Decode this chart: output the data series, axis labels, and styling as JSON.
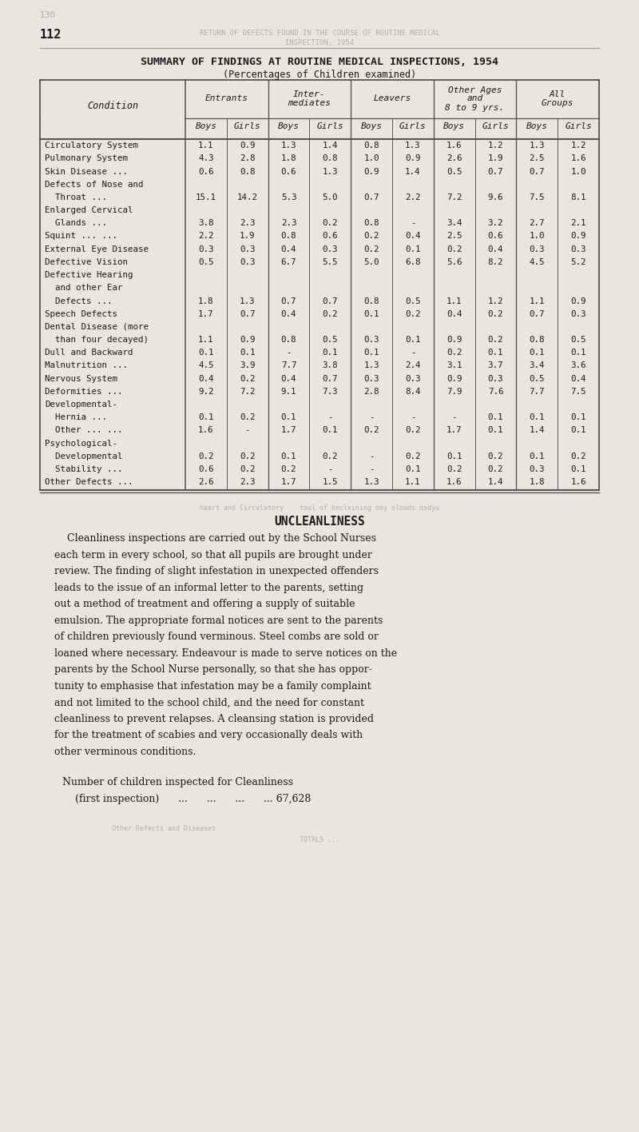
{
  "page_number_top": "130",
  "page_number": "112",
  "faded_header_line1": "RETURN OF DEFECTS FOUND IN THE COURSE OF ROUTINE MEDICAL",
  "faded_header_line2": "INSPECTION, 1954",
  "title": "SUMMARY OF FINDINGS AT ROUTINE MEDICAL INSPECTIONS, 1954",
  "subtitle": "(Percentages of Children examined)",
  "group_names": [
    "Entrants",
    "Inter-\nmediates",
    "Leavers",
    "Other Ages\nand\n8 to 9 yrs.",
    "All\nGroups"
  ],
  "conditions": [
    "Circulatory System",
    "Pulmonary System",
    "Skin Disease ...",
    "Defects of Nose and",
    "  Throat ...",
    "Enlarged Cervical",
    "  Glands ...",
    "Squint ... ...",
    "External Eye Disease",
    "Defective Vision",
    "Defective Hearing",
    "  and other Ear",
    "  Defects ...",
    "Speech Defects",
    "Dental Disease (more",
    "  than four decayed)",
    "Dull and Backward",
    "Malnutrition ...",
    "Nervous System",
    "Deformities ...",
    "Developmental-",
    "  Hernia ...",
    "  Other ... ...",
    "Psychological-",
    "  Developmental",
    "  Stability ...",
    "Other Defects ..."
  ],
  "row_data_map": {
    "Circulatory System": [
      1.1,
      0.9,
      1.3,
      1.4,
      0.8,
      1.3,
      1.6,
      1.2,
      1.3,
      1.2
    ],
    "Pulmonary System": [
      4.3,
      2.8,
      1.8,
      0.8,
      1.0,
      0.9,
      2.6,
      1.9,
      2.5,
      1.6
    ],
    "Skin Disease ...": [
      0.6,
      0.8,
      0.6,
      1.3,
      0.9,
      1.4,
      0.5,
      0.7,
      0.7,
      1.0
    ],
    "  Throat ...": [
      15.1,
      14.2,
      5.3,
      5.0,
      0.7,
      2.2,
      7.2,
      9.6,
      7.5,
      8.1
    ],
    "  Glands ...": [
      3.8,
      2.3,
      2.3,
      0.2,
      0.8,
      null,
      3.4,
      3.2,
      2.7,
      2.1
    ],
    "Squint ... ...": [
      2.2,
      1.9,
      0.8,
      0.6,
      0.2,
      0.4,
      2.5,
      0.6,
      1.0,
      0.9
    ],
    "External Eye Disease": [
      0.3,
      0.3,
      0.4,
      0.3,
      0.2,
      0.1,
      0.2,
      0.4,
      0.3,
      0.3
    ],
    "Defective Vision": [
      0.5,
      0.3,
      6.7,
      5.5,
      5.0,
      6.8,
      5.6,
      8.2,
      4.5,
      5.2
    ],
    "  Defects ...": [
      1.8,
      1.3,
      0.7,
      0.7,
      0.8,
      0.5,
      1.1,
      1.2,
      1.1,
      0.9
    ],
    "Speech Defects": [
      1.7,
      0.7,
      0.4,
      0.2,
      0.1,
      0.2,
      0.4,
      0.2,
      0.7,
      0.3
    ],
    "  than four decayed)": [
      1.1,
      0.9,
      0.8,
      0.5,
      0.3,
      0.1,
      0.9,
      0.2,
      0.8,
      0.5
    ],
    "Dull and Backward": [
      0.1,
      0.1,
      null,
      0.1,
      0.1,
      null,
      0.2,
      0.1,
      0.1,
      0.1
    ],
    "Malnutrition ...": [
      4.5,
      3.9,
      7.7,
      3.8,
      1.3,
      2.4,
      3.1,
      3.7,
      3.4,
      3.6
    ],
    "Nervous System": [
      0.4,
      0.2,
      0.4,
      0.7,
      0.3,
      0.3,
      0.9,
      0.3,
      0.5,
      0.4
    ],
    "Deformities ...": [
      9.2,
      7.2,
      9.1,
      7.3,
      2.8,
      8.4,
      7.9,
      7.6,
      7.7,
      7.5
    ],
    "  Hernia ...": [
      0.1,
      0.2,
      0.1,
      null,
      null,
      null,
      null,
      0.1,
      0.1,
      0.1
    ],
    "  Other ... ...": [
      1.6,
      null,
      1.7,
      0.1,
      0.2,
      0.2,
      1.7,
      0.1,
      1.4,
      0.1
    ],
    "  Developmental": [
      0.2,
      0.2,
      0.1,
      0.2,
      null,
      0.2,
      0.1,
      0.2,
      0.1,
      0.2
    ],
    "  Stability ...": [
      0.6,
      0.2,
      0.2,
      null,
      null,
      0.1,
      0.2,
      0.2,
      0.3,
      0.1
    ],
    "Other Defects ...": [
      2.6,
      2.3,
      1.7,
      1.5,
      1.3,
      1.1,
      1.6,
      1.4,
      1.8,
      1.6
    ]
  },
  "header_only_rows": [
    "Defects of Nose and",
    "Enlarged Cervical",
    "Defective Hearing",
    "  and other Ear",
    "Dental Disease (more",
    "Developmental-",
    "Psychological-"
  ],
  "uncleanliness_title": "UNCLEANLINESS",
  "uncleanliness_text": "Cleanliness inspections are carried out by the School Nurses each term in every school, so that all pupils are brought under review. The finding of slight infestation in unexpected offenders leads to the issue of an informal letter to the parents, setting out a method of treatment and offering a supply of suitable emulsion. The appropriate formal notices are sent to the parents of children previously found verminous. Steel combs are sold or loaned where necessary. Endeavour is made to serve notices on the parents by the School Nurse personally, so that she has oppor-tunity to emphasise that infestation may be a family complaint and not limited to the school child, and the need for constant cleanliness to prevent relapses. A cleansing station is provided for the treatment of scabies and very occasionally deals with other verminous conditions.",
  "footer_text1": "Number of children inspected for Cleanliness",
  "footer_text2": "    (first inspection)      ...      ...      ...      ... 67,628",
  "bg_color": "#eae6de",
  "text_color": "#1a1a1a",
  "line_color": "#555555",
  "faded_color": "#b8b0a0"
}
